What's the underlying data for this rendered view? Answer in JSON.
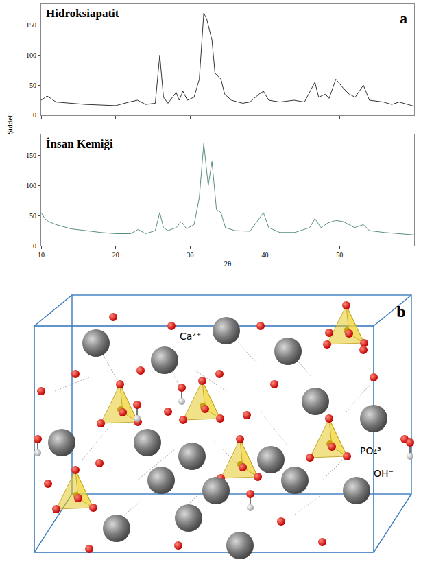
{
  "chart_data": [
    {
      "type": "line",
      "title": "Hidroksiapatit",
      "color": "#333333",
      "x": [
        10,
        10.8,
        12,
        14,
        16,
        18,
        20,
        21.8,
        22.9,
        24,
        25.3,
        25.9,
        26.4,
        27,
        28.1,
        28.5,
        29,
        29.6,
        30.5,
        31.2,
        31.8,
        32.2,
        32.9,
        33.3,
        34.1,
        34.6,
        35.5,
        37,
        38,
        39.2,
        39.8,
        40.5,
        42,
        43.9,
        45.3,
        46.7,
        47.2,
        48.1,
        48.6,
        49.5,
        50.5,
        51.3,
        52.1,
        53.2,
        54,
        55.9,
        57,
        58,
        60
      ],
      "values": [
        25,
        32,
        22,
        20,
        18,
        17,
        16,
        22,
        25,
        18,
        20,
        100,
        30,
        20,
        38,
        25,
        40,
        25,
        30,
        60,
        170,
        160,
        125,
        70,
        60,
        35,
        25,
        20,
        22,
        35,
        40,
        25,
        22,
        25,
        22,
        55,
        30,
        35,
        28,
        60,
        45,
        35,
        30,
        50,
        25,
        22,
        18,
        22,
        15
      ],
      "xlim": [
        10,
        60
      ],
      "ylim": [
        0,
        185
      ],
      "xticks": [
        10,
        20,
        30,
        40,
        50
      ],
      "yticks": [
        0,
        50,
        100,
        150
      ],
      "tick_labels": "y",
      "grid": false
    },
    {
      "type": "line",
      "title": "İnsan Kemiği",
      "xlabel": "2θ",
      "color": "#5a8f80",
      "x": [
        10,
        10.5,
        11,
        12,
        14,
        16,
        18,
        20,
        22,
        23,
        24,
        25.3,
        25.9,
        26.4,
        27,
        28.1,
        28.8,
        29.5,
        30.5,
        31.2,
        31.8,
        32.4,
        32.9,
        33.5,
        34.1,
        34.7,
        36,
        38,
        39.8,
        40.5,
        42,
        44,
        46,
        46.7,
        47.5,
        48.5,
        49.5,
        50.5,
        51.3,
        52,
        53.2,
        54,
        56,
        58,
        60
      ],
      "values": [
        55,
        45,
        40,
        35,
        28,
        25,
        22,
        20,
        20,
        27,
        20,
        25,
        55,
        30,
        25,
        30,
        40,
        28,
        35,
        80,
        170,
        100,
        140,
        60,
        55,
        30,
        25,
        24,
        55,
        30,
        22,
        22,
        30,
        45,
        30,
        38,
        42,
        40,
        35,
        30,
        35,
        25,
        22,
        20,
        18
      ],
      "xlim": [
        10,
        60
      ],
      "ylim": [
        0,
        185
      ],
      "xticks": [
        10,
        20,
        30,
        40,
        50
      ],
      "yticks": [
        0,
        50,
        100,
        150
      ],
      "grid": false
    }
  ],
  "figure": {
    "panel_label": "a",
    "ylabel": "Şiddet"
  },
  "diagram": {
    "panel_label": "b",
    "labels": {
      "calcium": "Ca²⁺",
      "phosphate": "PO₄³⁻",
      "hydroxide": "OH⁻"
    }
  }
}
